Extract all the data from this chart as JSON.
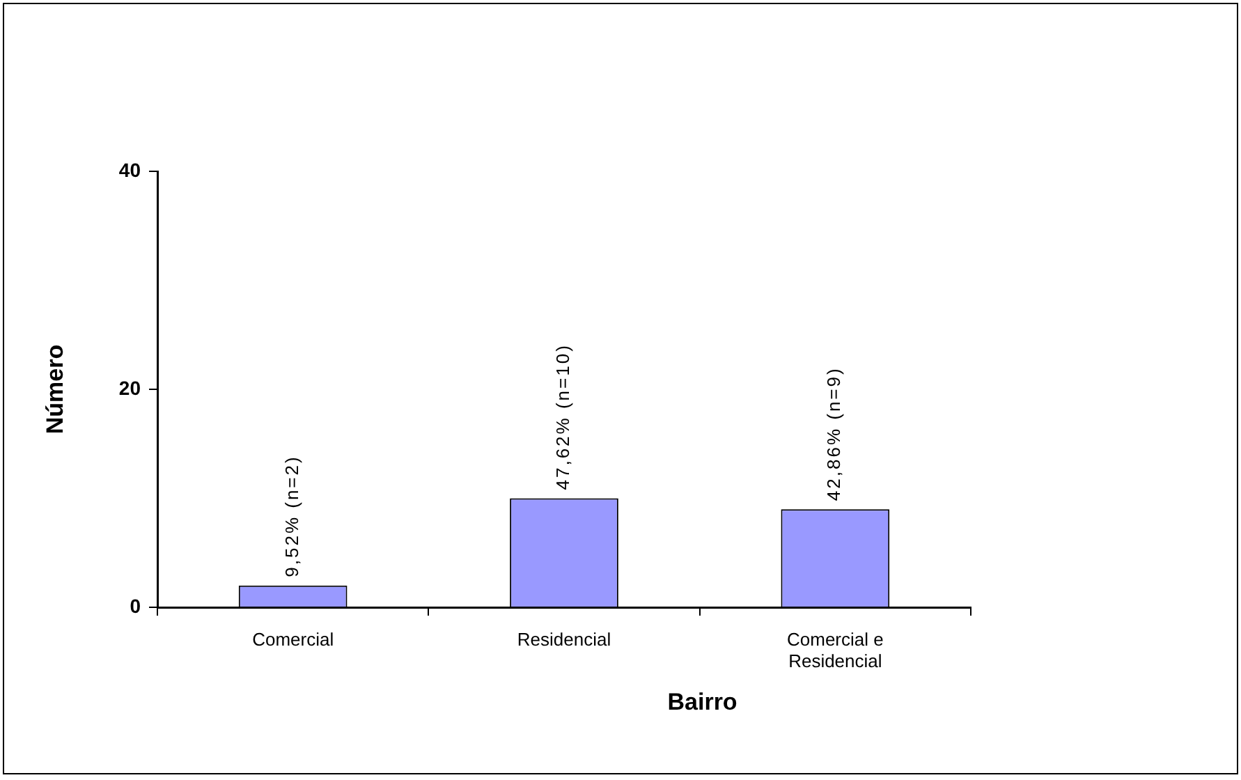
{
  "chart_data": {
    "type": "bar",
    "categories": [
      "Comercial",
      "Residencial",
      "Comercial e Residencial"
    ],
    "values": [
      2,
      10,
      9
    ],
    "color": "#9999ff",
    "value_labels": [
      "9,52% (n=2)",
      "47,62% (n=10)",
      "42,86% (n=9)"
    ],
    "xlabel": "Bairro",
    "ylabel": "Número",
    "ylim": [
      0,
      40
    ],
    "yticks": [
      0,
      20,
      40
    ]
  }
}
